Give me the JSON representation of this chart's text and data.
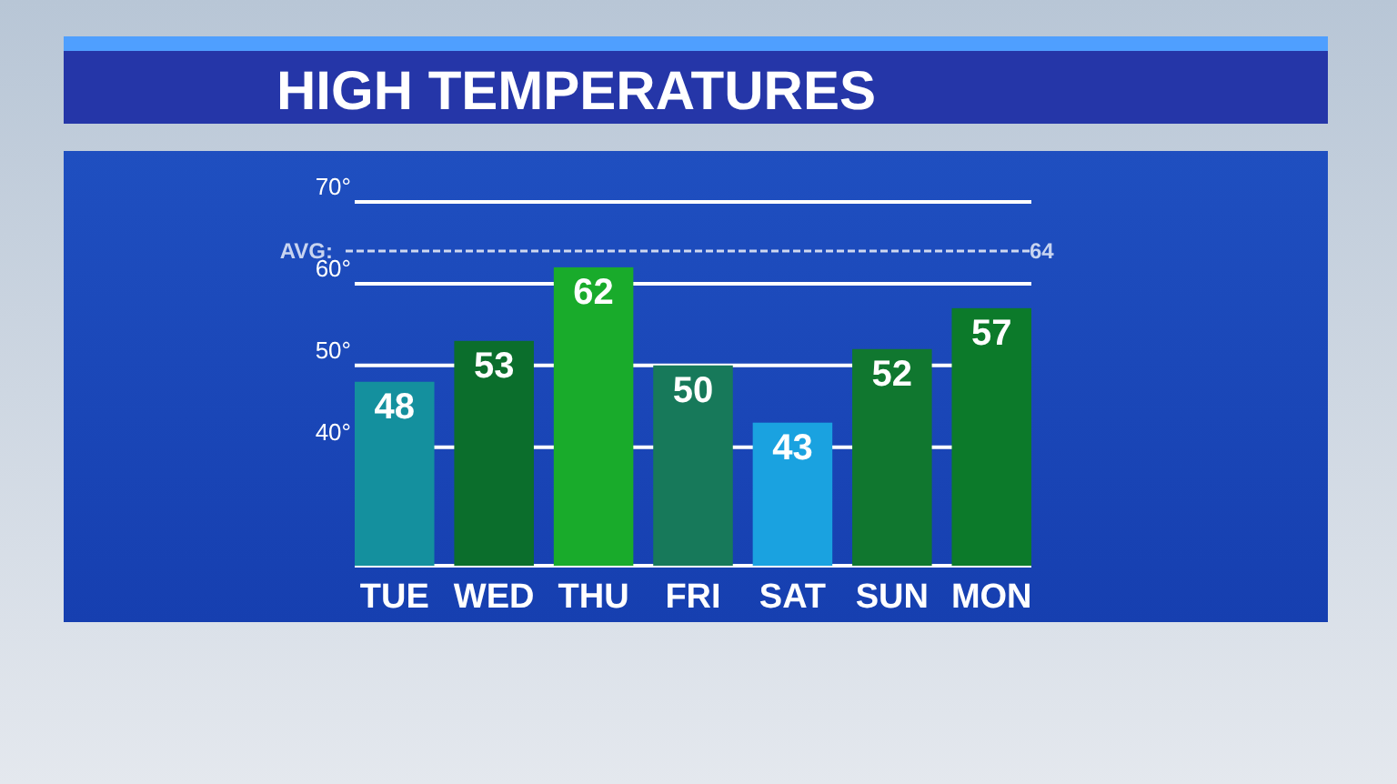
{
  "chart_data": {
    "type": "bar",
    "title": "HIGH TEMPERATURES",
    "categories": [
      "TUE",
      "WED",
      "THU",
      "FRI",
      "SAT",
      "SUN",
      "MON"
    ],
    "values": [
      48,
      53,
      62,
      50,
      43,
      52,
      57
    ],
    "colors": [
      "#14909e",
      "#0b6e2c",
      "#19ab2b",
      "#17795a",
      "#1aa2e0",
      "#10772f",
      "#0c7a2a"
    ],
    "ylim": [
      25.5,
      70
    ],
    "yticks": [
      {
        "value": 25.5,
        "label": null
      },
      {
        "value": 40,
        "label": "40°"
      },
      {
        "value": 50,
        "label": "50°"
      },
      {
        "value": 60,
        "label": "60°"
      },
      {
        "value": 70,
        "label": "70°"
      }
    ],
    "grid": "y",
    "data_labels": true,
    "ref_lines": [
      {
        "axis": "y",
        "value": 64,
        "label": "AVG:",
        "line_style": "dashed"
      }
    ],
    "annotations": [
      "64"
    ]
  }
}
